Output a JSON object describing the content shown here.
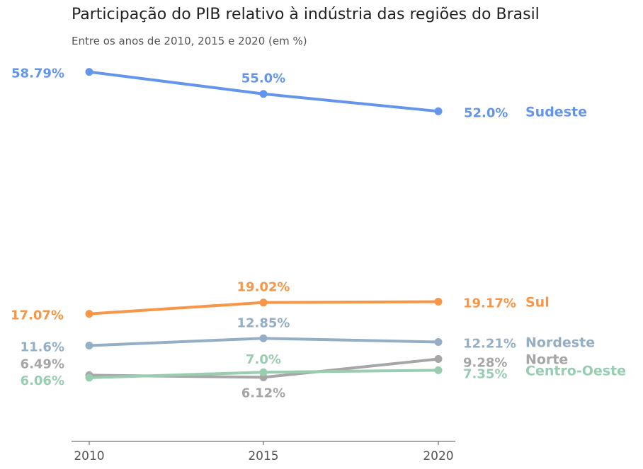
{
  "title": "Participação do PIB relativo à indústria das regiões do Brasil",
  "subtitle": "Entre os anos de 2010, 2015 e 2020 (em %)",
  "chart_data": {
    "type": "line",
    "x": [
      "2010",
      "2015",
      "2020"
    ],
    "series": [
      {
        "name": "Sudeste",
        "color": "#6495ED",
        "values": [
          58.79,
          55.0,
          52.0
        ],
        "labels": [
          "58.79%",
          "55.0%",
          "52.0%"
        ]
      },
      {
        "name": "Sul",
        "color": "#F79646",
        "values": [
          17.07,
          19.02,
          19.17
        ],
        "labels": [
          "17.07%",
          "19.02%",
          "19.17%"
        ]
      },
      {
        "name": "Nordeste",
        "color": "#94AFC5",
        "values": [
          11.6,
          12.85,
          12.21
        ],
        "labels": [
          "11.6%",
          "12.85%",
          "12.21%"
        ]
      },
      {
        "name": "Norte",
        "color": "#A6A6A6",
        "values": [
          6.49,
          6.12,
          9.28
        ],
        "labels": [
          "6.49%",
          "6.12%",
          "9.28%"
        ]
      },
      {
        "name": "Centro-Oeste",
        "color": "#98CDB0",
        "values": [
          6.06,
          7.0,
          7.35
        ],
        "labels": [
          "6.06%",
          "7.0%",
          "7.35%"
        ]
      }
    ],
    "grid": false,
    "legend": "series names at right end of lines"
  }
}
